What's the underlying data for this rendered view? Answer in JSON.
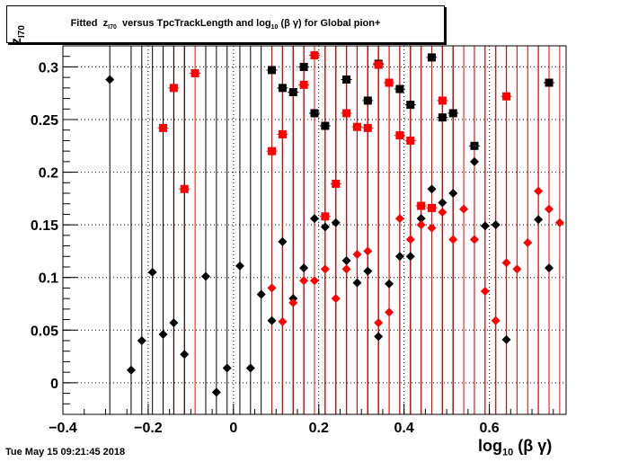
{
  "title": {
    "prefix": "Fitted  z",
    "sub1": "I70",
    "middle": "  versus TpcTrackLength and log",
    "sub2": "10",
    "suffix": " (β γ) for Global pion+"
  },
  "timestamp": "Tue May 15 09:21:45 2018",
  "xlabel": {
    "main": "log",
    "sub": "10",
    "rest": " (β γ)"
  },
  "ylabel": {
    "main": "z",
    "sub": "I70"
  },
  "colors": {
    "series_black": "#000000",
    "series_red": "#ff0000",
    "grid": "#000000"
  },
  "chart_data": {
    "type": "scatter",
    "xlim": [
      -0.4,
      0.78
    ],
    "ylim": [
      -0.03,
      0.32
    ],
    "grid": true,
    "xticks": [
      "−0.4",
      "−0.2",
      "0",
      "0.2",
      "0.4",
      "0.6"
    ],
    "xtick_values": [
      -0.4,
      -0.2,
      0,
      0.2,
      0.4,
      0.6
    ],
    "yticks": [
      "0",
      "0.05",
      "0.1",
      "0.15",
      "0.2",
      "0.25",
      "0.3"
    ],
    "ytick_values": [
      0,
      0.05,
      0.1,
      0.15,
      0.2,
      0.25,
      0.3
    ],
    "series": [
      {
        "marker": "square",
        "color": "#000000",
        "points": [
          [
            0.09,
            0.297
          ],
          [
            0.115,
            0.28
          ],
          [
            0.14,
            0.276
          ],
          [
            0.165,
            0.3
          ],
          [
            0.19,
            0.256
          ],
          [
            0.215,
            0.244
          ],
          [
            0.265,
            0.288
          ],
          [
            0.315,
            0.268
          ],
          [
            0.34,
            0.303
          ],
          [
            0.39,
            0.279
          ],
          [
            0.415,
            0.264
          ],
          [
            0.465,
            0.309
          ],
          [
            0.49,
            0.252
          ],
          [
            0.515,
            0.256
          ],
          [
            0.565,
            0.225
          ],
          [
            0.74,
            0.285
          ]
        ]
      },
      {
        "marker": "square",
        "color": "#ff0000",
        "points": [
          [
            -0.165,
            0.242
          ],
          [
            -0.14,
            0.28
          ],
          [
            -0.115,
            0.184
          ],
          [
            -0.09,
            0.294
          ],
          [
            0.09,
            0.22
          ],
          [
            0.115,
            0.236
          ],
          [
            0.165,
            0.283
          ],
          [
            0.19,
            0.311
          ],
          [
            0.215,
            0.158
          ],
          [
            0.24,
            0.189
          ],
          [
            0.265,
            0.256
          ],
          [
            0.29,
            0.243
          ],
          [
            0.315,
            0.242
          ],
          [
            0.34,
            0.302
          ],
          [
            0.365,
            0.285
          ],
          [
            0.39,
            0.235
          ],
          [
            0.415,
            0.23
          ],
          [
            0.44,
            0.168
          ],
          [
            0.465,
            0.166
          ],
          [
            0.49,
            0.268
          ],
          [
            0.64,
            0.272
          ]
        ]
      },
      {
        "marker": "diamond",
        "color": "#000000",
        "points": [
          [
            -0.29,
            0.288
          ],
          [
            -0.24,
            0.012
          ],
          [
            -0.215,
            0.04
          ],
          [
            -0.19,
            0.105
          ],
          [
            -0.165,
            0.046
          ],
          [
            -0.14,
            0.057
          ],
          [
            -0.115,
            0.027
          ],
          [
            -0.065,
            0.101
          ],
          [
            -0.04,
            -0.009
          ],
          [
            -0.015,
            0.014
          ],
          [
            0.015,
            0.111
          ],
          [
            0.04,
            0.014
          ],
          [
            0.065,
            0.084
          ],
          [
            0.09,
            0.059
          ],
          [
            0.115,
            0.134
          ],
          [
            0.14,
            0.08
          ],
          [
            0.165,
            0.109
          ],
          [
            0.19,
            0.156
          ],
          [
            0.215,
            0.148
          ],
          [
            0.24,
            0.152
          ],
          [
            0.265,
            0.116
          ],
          [
            0.29,
            0.095
          ],
          [
            0.315,
            0.106
          ],
          [
            0.34,
            0.044
          ],
          [
            0.365,
            0.094
          ],
          [
            0.39,
            0.12
          ],
          [
            0.415,
            0.12
          ],
          [
            0.44,
            0.156
          ],
          [
            0.465,
            0.184
          ],
          [
            0.49,
            0.171
          ],
          [
            0.515,
            0.18
          ],
          [
            0.565,
            0.21
          ],
          [
            0.59,
            0.149
          ],
          [
            0.615,
            0.15
          ],
          [
            0.64,
            0.041
          ],
          [
            0.715,
            0.155
          ],
          [
            0.74,
            0.109
          ]
        ]
      },
      {
        "marker": "diamond",
        "color": "#ff0000",
        "points": [
          [
            0.09,
            0.09
          ],
          [
            0.115,
            0.058
          ],
          [
            0.14,
            0.076
          ],
          [
            0.165,
            0.097
          ],
          [
            0.19,
            0.097
          ],
          [
            0.215,
            0.108
          ],
          [
            0.24,
            0.08
          ],
          [
            0.265,
            0.108
          ],
          [
            0.29,
            0.122
          ],
          [
            0.315,
            0.125
          ],
          [
            0.34,
            0.057
          ],
          [
            0.365,
            0.067
          ],
          [
            0.39,
            0.156
          ],
          [
            0.415,
            0.136
          ],
          [
            0.44,
            0.15
          ],
          [
            0.465,
            0.147
          ],
          [
            0.49,
            0.162
          ],
          [
            0.515,
            0.136
          ],
          [
            0.54,
            0.165
          ],
          [
            0.565,
            0.136
          ],
          [
            0.59,
            0.087
          ],
          [
            0.615,
            0.059
          ],
          [
            0.64,
            0.114
          ],
          [
            0.665,
            0.108
          ],
          [
            0.69,
            0.133
          ],
          [
            0.715,
            0.182
          ],
          [
            0.74,
            0.165
          ],
          [
            0.765,
            0.152
          ]
        ]
      }
    ]
  }
}
